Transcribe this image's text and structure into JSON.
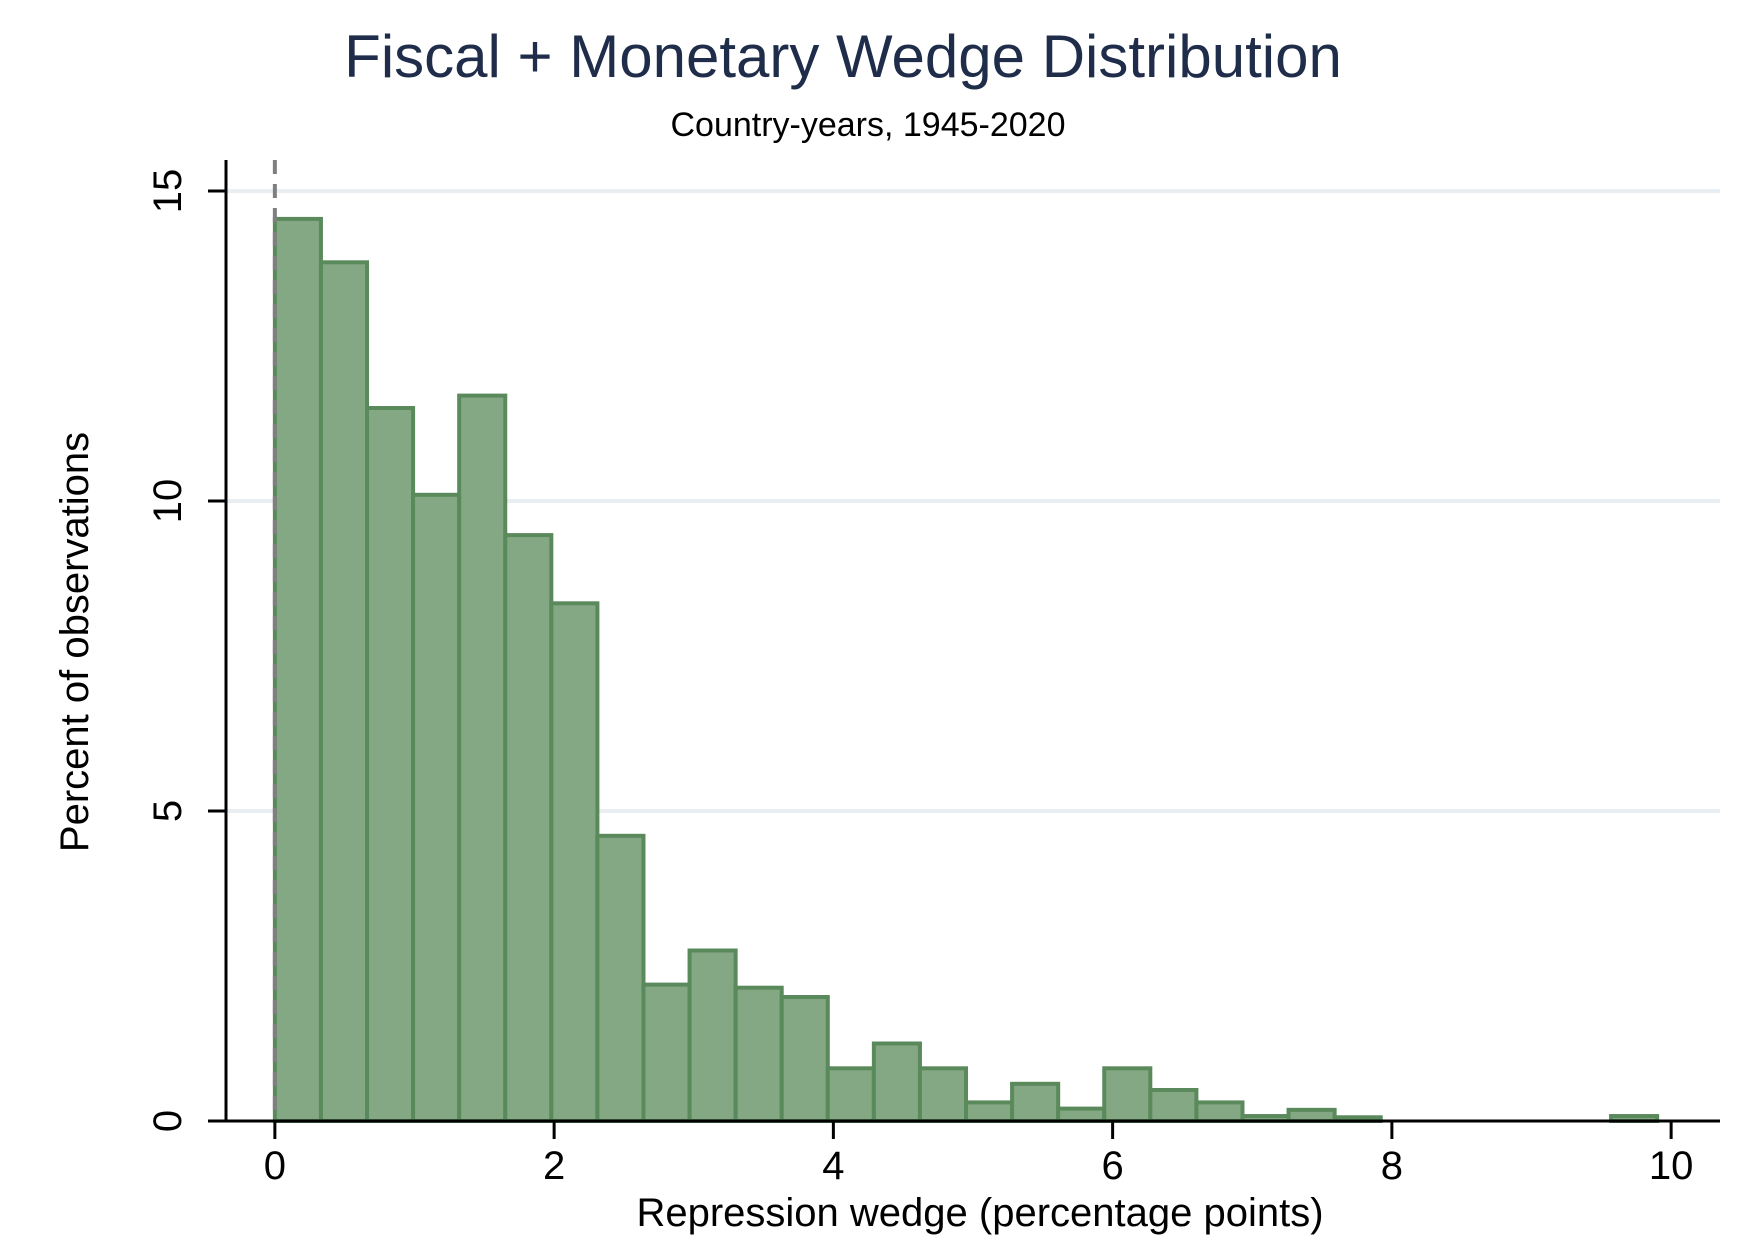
{
  "chart_data": {
    "type": "bar",
    "title": "Fiscal + Monetary Wedge Distribution",
    "subtitle": "Country-years, 1945-2020",
    "xlabel": "Repression wedge (percentage points)",
    "ylabel": "Percent of observations",
    "xlim": [
      -0.35,
      10.35
    ],
    "ylim": [
      0,
      15.5
    ],
    "x_ticks": [
      0,
      2,
      4,
      6,
      8,
      10
    ],
    "x_tick_labels": [
      "0",
      "2",
      "4",
      "6",
      "8",
      "10"
    ],
    "y_ticks": [
      0,
      5,
      10,
      15
    ],
    "y_tick_labels": [
      "0",
      "5",
      "10",
      "15"
    ],
    "grid": "horizontal",
    "legend": "none",
    "reference_line_x": 0,
    "bin_width": 0.33,
    "bins": [
      {
        "start": 0.0,
        "value": 14.55
      },
      {
        "start": 0.33,
        "value": 13.85
      },
      {
        "start": 0.66,
        "value": 11.5
      },
      {
        "start": 0.99,
        "value": 10.1
      },
      {
        "start": 1.32,
        "value": 11.7
      },
      {
        "start": 1.65,
        "value": 9.45
      },
      {
        "start": 1.98,
        "value": 8.35
      },
      {
        "start": 2.31,
        "value": 4.6
      },
      {
        "start": 2.64,
        "value": 2.2
      },
      {
        "start": 2.97,
        "value": 2.75
      },
      {
        "start": 3.3,
        "value": 2.15
      },
      {
        "start": 3.63,
        "value": 2.0
      },
      {
        "start": 3.96,
        "value": 0.85
      },
      {
        "start": 4.29,
        "value": 1.25
      },
      {
        "start": 4.62,
        "value": 0.85
      },
      {
        "start": 4.95,
        "value": 0.3
      },
      {
        "start": 5.28,
        "value": 0.6
      },
      {
        "start": 5.61,
        "value": 0.2
      },
      {
        "start": 5.94,
        "value": 0.85
      },
      {
        "start": 6.27,
        "value": 0.5
      },
      {
        "start": 6.6,
        "value": 0.3
      },
      {
        "start": 6.93,
        "value": 0.08
      },
      {
        "start": 7.26,
        "value": 0.18
      },
      {
        "start": 7.59,
        "value": 0.06
      },
      {
        "start": 9.57,
        "value": 0.08
      }
    ],
    "colors": {
      "bar_fill": "#85a884",
      "bar_edge": "#5a8a5b",
      "grid": "#e8eef1",
      "axis": "#000000",
      "title": "#1f2d4a",
      "reference_line": "#7f7f7f"
    }
  }
}
